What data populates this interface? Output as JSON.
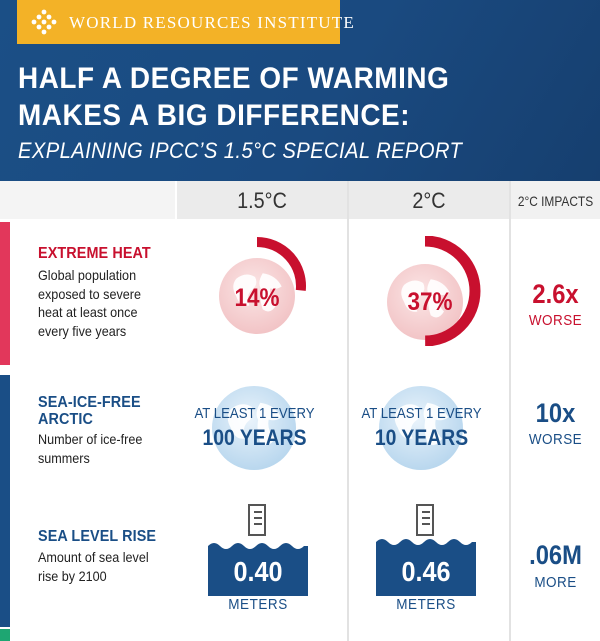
{
  "header": {
    "organization": "WORLD RESOURCES INSTITUTE",
    "title_line1": "HALF A DEGREE OF WARMING",
    "title_line2": "MAKES A BIG DIFFERENCE:",
    "subtitle": "EXPLAINING IPCC’S 1.5°C SPECIAL REPORT"
  },
  "columns": {
    "col1": "1.5°C",
    "col2": "2°C",
    "col3": "2°C IMPACTS"
  },
  "rows": {
    "heat": {
      "title": "EXTREME HEAT",
      "desc": [
        "Global population",
        "exposed to severe",
        "heat at least once",
        "every five years"
      ],
      "val_15": "14%",
      "val_2": "37%",
      "frac_15": 0.14,
      "frac_2": 0.37,
      "impact_value": "2.6x",
      "impact_word": "WORSE"
    },
    "ice": {
      "title_line1": "SEA-ICE-FREE",
      "title_line2": "ARCTIC",
      "desc": [
        "Number of ice-free",
        "summers"
      ],
      "top_15": "AT LEAST 1 EVERY",
      "big_15": "100 YEARS",
      "top_2": "AT LEAST 1 EVERY",
      "big_2": "10 YEARS",
      "impact_value": "10x",
      "impact_word": "WORSE"
    },
    "sea": {
      "title": "SEA LEVEL RISE",
      "desc": [
        "Amount of sea level",
        "rise by 2100"
      ],
      "val_15": "0.40",
      "val_2": "0.46",
      "unit": "METERS",
      "impact_value": ".06M",
      "impact_word": "MORE"
    }
  },
  "colors": {
    "navy": "#1a4e86",
    "red": "#c8102e",
    "gold": "#f3b227",
    "heat_accent": "#e2375b",
    "green_accent": "#1ea672"
  }
}
